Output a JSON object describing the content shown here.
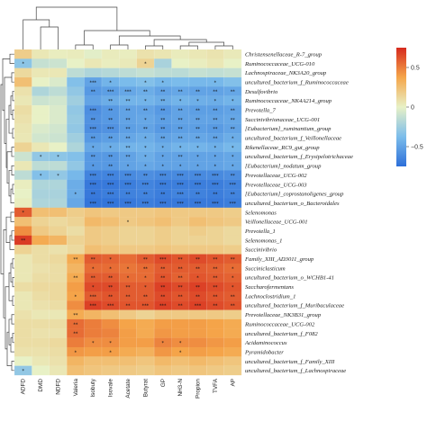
{
  "chart_data": {
    "type": "heatmap",
    "title": "",
    "xlabel": "",
    "ylabel": "",
    "color_scale": {
      "min": -0.75,
      "max": 0.75,
      "ticks": [
        0.5,
        0,
        -0.5
      ],
      "tick_labels": [
        "0.5",
        "0",
        "−0.5"
      ],
      "colors": [
        "#2d6fd9",
        "#7cbdeb",
        "#e8f1c6",
        "#f5a64a",
        "#d62a1e"
      ]
    },
    "columns": [
      "ADFD",
      "DMD",
      "NDFD",
      "Valeria",
      "Isobuty",
      "Isovale",
      "Acetate",
      "Butyrat",
      "GP",
      "NH3-N",
      "Propion",
      "TVFA",
      "AP"
    ],
    "rows": [
      {
        "name": "Christensenellaceae_R-7_group",
        "values": [
          0.18,
          0.05,
          0.02,
          0.03,
          -0.02,
          0.03,
          0.02,
          0.08,
          0.06,
          0.03,
          0.05,
          0.07,
          0.04
        ]
      },
      {
        "name": "Ruminococcaceae_UCG-010",
        "values": [
          -0.32,
          -0.12,
          -0.1,
          0.0,
          0.05,
          0.02,
          0.04,
          0.15,
          -0.22,
          0.0,
          0.02,
          0.05,
          0.0
        ],
        "stars": [
          "*",
          "",
          "",
          "",
          "",
          "",
          "",
          "*",
          "",
          "",
          "",
          "",
          ""
        ]
      },
      {
        "name": "Lachnospiraceae_NK3A20_group",
        "values": [
          0.12,
          0.05,
          0.05,
          -0.15,
          -0.2,
          -0.18,
          -0.15,
          -0.12,
          -0.15,
          -0.16,
          -0.12,
          -0.14,
          -0.12
        ]
      },
      {
        "name": "uncultured_bacterium_f_Ruminococcaceae",
        "values": [
          0.25,
          0.0,
          -0.05,
          -0.35,
          -0.5,
          -0.42,
          -0.38,
          -0.35,
          -0.4,
          -0.38,
          -0.4,
          -0.4,
          -0.35
        ],
        "stars": [
          "",
          "",
          "",
          "",
          "***",
          "*",
          "",
          "*",
          "*",
          "",
          "",
          "*",
          ""
        ]
      },
      {
        "name": "Desulfovibrio",
        "values": [
          0.08,
          -0.2,
          -0.15,
          -0.3,
          -0.55,
          -0.52,
          -0.48,
          -0.45,
          -0.5,
          -0.48,
          -0.5,
          -0.5,
          -0.48
        ],
        "stars": [
          "",
          "",
          "",
          "",
          "**",
          "***",
          "***",
          "**",
          "**",
          "**",
          "**",
          "**",
          "**"
        ]
      },
      {
        "name": "Ruminococcaceae_NK4A214_group",
        "values": [
          0.05,
          -0.1,
          -0.08,
          -0.25,
          -0.5,
          -0.45,
          -0.42,
          -0.42,
          -0.45,
          -0.42,
          -0.44,
          -0.45,
          -0.42
        ],
        "stars": [
          "",
          "",
          "",
          "",
          "",
          "**",
          "**",
          "*",
          "**",
          "*",
          "*",
          "*",
          "*"
        ]
      },
      {
        "name": "Prevotella_7",
        "values": [
          0.1,
          0.0,
          -0.05,
          -0.3,
          -0.6,
          -0.55,
          -0.5,
          -0.5,
          -0.55,
          -0.5,
          -0.52,
          -0.52,
          -0.5
        ],
        "stars": [
          "",
          "",
          "",
          "",
          "***",
          "**",
          "**",
          "**",
          "**",
          "**",
          "**",
          "**",
          "**"
        ]
      },
      {
        "name": "Succinivibrionaceae_UCG-001",
        "values": [
          0.08,
          0.0,
          -0.05,
          -0.28,
          -0.58,
          -0.55,
          -0.5,
          -0.48,
          -0.52,
          -0.5,
          -0.5,
          -0.5,
          -0.48
        ],
        "stars": [
          "",
          "",
          "",
          "",
          "**",
          "**",
          "**",
          "*",
          "**",
          "**",
          "**",
          "**",
          "**"
        ]
      },
      {
        "name": "[Eubacterium]_ruminantium_group",
        "values": [
          0.06,
          -0.05,
          -0.08,
          -0.3,
          -0.6,
          -0.58,
          -0.52,
          -0.5,
          -0.55,
          -0.52,
          -0.52,
          -0.54,
          -0.5
        ],
        "stars": [
          "",
          "",
          "",
          "",
          "***",
          "***",
          "**",
          "**",
          "**",
          "**",
          "**",
          "**",
          "**"
        ]
      },
      {
        "name": "uncultured_bacterium_f_Veillonellaceae",
        "values": [
          0.05,
          -0.08,
          -0.1,
          -0.25,
          -0.55,
          -0.52,
          -0.48,
          -0.45,
          -0.5,
          -0.48,
          -0.48,
          -0.5,
          -0.45
        ],
        "stars": [
          "",
          "",
          "",
          "",
          "**",
          "**",
          "**",
          "*",
          "**",
          "**",
          "**",
          "**",
          "*"
        ]
      },
      {
        "name": "Rikenellaceae_RC9_gut_group",
        "values": [
          0.15,
          0.05,
          0.0,
          -0.2,
          -0.48,
          -0.45,
          -0.42,
          -0.42,
          -0.45,
          -0.42,
          -0.42,
          -0.44,
          -0.4
        ],
        "stars": [
          "",
          "",
          "",
          "",
          "*",
          "*",
          "**",
          "*",
          "*",
          "*",
          "*",
          "*",
          "*"
        ]
      },
      {
        "name": "uncultured_bacterium_f_Erysipelotrichaceae",
        "values": [
          -0.1,
          -0.3,
          -0.32,
          -0.35,
          -0.55,
          -0.55,
          -0.5,
          -0.45,
          -0.5,
          -0.5,
          -0.5,
          -0.5,
          -0.48
        ],
        "stars": [
          "",
          "*",
          "*",
          "",
          "**",
          "**",
          "**",
          "*",
          "*",
          "**",
          "*",
          "*",
          "*"
        ]
      },
      {
        "name": "[Eubacterium]_nodatum_group",
        "values": [
          0.05,
          -0.15,
          -0.15,
          -0.3,
          -0.55,
          -0.55,
          -0.5,
          -0.48,
          -0.5,
          -0.5,
          -0.5,
          -0.5,
          -0.48
        ],
        "stars": [
          "",
          "",
          "",
          "",
          "*",
          "**",
          "*",
          "*",
          "*",
          "*",
          "*",
          "*",
          "*"
        ]
      },
      {
        "name": "Prevotellaceae_UCG-002",
        "values": [
          -0.15,
          -0.35,
          -0.3,
          -0.4,
          -0.65,
          -0.65,
          -0.62,
          -0.6,
          -0.62,
          -0.62,
          -0.62,
          -0.62,
          -0.6
        ],
        "stars": [
          "",
          "*",
          "*",
          "",
          "***",
          "***",
          "***",
          "**",
          "***",
          "***",
          "***",
          "***",
          "**"
        ]
      },
      {
        "name": "Prevotellaceae_UCG-003",
        "values": [
          0.02,
          -0.2,
          -0.2,
          -0.45,
          -0.7,
          -0.7,
          -0.68,
          -0.65,
          -0.68,
          -0.68,
          -0.68,
          -0.68,
          -0.65
        ],
        "stars": [
          "",
          "",
          "",
          "",
          "***",
          "***",
          "***",
          "***",
          "***",
          "***",
          "***",
          "***",
          "***"
        ]
      },
      {
        "name": "[Eubacterium]_coprostanoligenes_group",
        "values": [
          0.0,
          -0.22,
          -0.22,
          -0.45,
          -0.7,
          -0.68,
          -0.66,
          -0.65,
          -0.68,
          -0.65,
          -0.66,
          -0.68,
          -0.65
        ],
        "stars": [
          "",
          "",
          "",
          "*",
          "**",
          "***",
          "**",
          "**",
          "**",
          "***",
          "**",
          "**",
          "**"
        ]
      },
      {
        "name": "uncultured_bacterium_o_Bacteroidales",
        "values": [
          0.02,
          -0.2,
          -0.2,
          -0.48,
          -0.72,
          -0.72,
          -0.7,
          -0.68,
          -0.7,
          -0.7,
          -0.7,
          -0.7,
          -0.68
        ],
        "stars": [
          "",
          "",
          "",
          "",
          "***",
          "***",
          "***",
          "***",
          "***",
          "***",
          "***",
          "***",
          "***"
        ]
      },
      {
        "name": "Selenomonas",
        "values": [
          0.6,
          0.25,
          0.25,
          0.18,
          0.22,
          0.2,
          0.2,
          0.2,
          0.22,
          0.2,
          0.2,
          0.2,
          0.18
        ],
        "stars": [
          "*",
          "",
          "",
          "",
          "",
          "",
          "",
          "",
          "",
          "",
          "",
          "",
          ""
        ]
      },
      {
        "name": "Veillonellaceae_UCG-001",
        "values": [
          0.25,
          0.15,
          0.12,
          0.15,
          0.28,
          0.25,
          0.2,
          0.22,
          0.25,
          0.2,
          0.25,
          0.22,
          0.2
        ],
        "stars": [
          "",
          "",
          "",
          "",
          "",
          "",
          "*",
          "",
          "",
          "",
          "",
          "",
          ""
        ]
      },
      {
        "name": "Prevotella_1",
        "values": [
          0.45,
          0.2,
          0.15,
          0.1,
          0.2,
          0.18,
          0.15,
          0.15,
          0.18,
          0.15,
          0.18,
          0.15,
          0.12
        ]
      },
      {
        "name": "Selenomonas_1",
        "values": [
          0.7,
          0.35,
          0.3,
          0.15,
          0.2,
          0.18,
          0.15,
          0.15,
          0.18,
          0.15,
          0.15,
          0.15,
          0.12
        ],
        "stars": [
          "**",
          "",
          "",
          "",
          "",
          "",
          "",
          "",
          "",
          "",
          "",
          "",
          ""
        ]
      },
      {
        "name": "Succinivibrio",
        "values": [
          0.15,
          0.1,
          0.08,
          0.12,
          0.25,
          0.22,
          0.2,
          0.2,
          0.22,
          0.2,
          0.2,
          0.2,
          0.18
        ]
      },
      {
        "name": "Family_XIII_AD3011_group",
        "values": [
          0.05,
          0.1,
          0.12,
          0.35,
          0.6,
          0.58,
          0.55,
          0.6,
          0.65,
          0.62,
          0.65,
          0.62,
          0.6
        ],
        "stars": [
          "",
          "",
          "",
          "**",
          "**",
          "*",
          "",
          "**",
          "***",
          "**",
          "**",
          "**",
          "**"
        ]
      },
      {
        "name": "Succiniclasticum",
        "values": [
          0.05,
          0.08,
          0.1,
          0.3,
          0.55,
          0.55,
          0.52,
          0.55,
          0.6,
          0.6,
          0.6,
          0.58,
          0.55
        ],
        "stars": [
          "",
          "",
          "",
          "",
          "*",
          "*",
          "*",
          "**",
          "**",
          "**",
          "**",
          "**",
          "*"
        ]
      },
      {
        "name": "uncultured_bacterium_o_WCHB1-41",
        "values": [
          0.05,
          0.1,
          0.1,
          0.35,
          0.6,
          0.6,
          0.55,
          0.55,
          0.62,
          0.58,
          0.62,
          0.6,
          0.58
        ],
        "stars": [
          "",
          "",
          "",
          "**",
          "**",
          "**",
          "*",
          "*",
          "**",
          "**",
          "*",
          "**",
          "*"
        ]
      },
      {
        "name": "Saccharofermentans",
        "values": [
          0.1,
          0.12,
          0.12,
          0.4,
          0.65,
          0.65,
          0.6,
          0.6,
          0.68,
          0.65,
          0.68,
          0.65,
          0.62
        ],
        "stars": [
          "",
          "",
          "",
          "",
          "*",
          "**",
          "**",
          "*",
          "**",
          "**",
          "**",
          "**",
          "*"
        ]
      },
      {
        "name": "Lachnoclostridium_1",
        "values": [
          0.05,
          0.1,
          0.12,
          0.38,
          0.6,
          0.62,
          0.6,
          0.6,
          0.65,
          0.62,
          0.65,
          0.62,
          0.6
        ],
        "stars": [
          "",
          "",
          "",
          "*",
          "***",
          "**",
          "**",
          "**",
          "**",
          "**",
          "**",
          "**",
          "**"
        ]
      },
      {
        "name": "uncultured_bacterium_f_Muribaculaceae",
        "values": [
          0.05,
          0.08,
          0.1,
          0.45,
          0.68,
          0.65,
          0.62,
          0.62,
          0.68,
          0.65,
          0.68,
          0.65,
          0.62
        ],
        "stars": [
          "",
          "",
          "",
          "",
          "***",
          "***",
          "**",
          "***",
          "***",
          "**",
          "***",
          "**",
          "**"
        ]
      },
      {
        "name": "Prevotellaceae_NK3B31_group",
        "values": [
          0.08,
          0.05,
          0.05,
          0.35,
          0.3,
          0.25,
          0.2,
          0.15,
          0.2,
          0.2,
          0.2,
          0.2,
          0.18
        ],
        "stars": [
          "",
          "",
          "",
          "**",
          "",
          "",
          "",
          "",
          "",
          "",
          "",
          "",
          ""
        ]
      },
      {
        "name": "Ruminococcaceae_UCG-002",
        "values": [
          0.1,
          0.1,
          0.1,
          0.55,
          0.5,
          0.45,
          0.38,
          0.35,
          0.4,
          0.4,
          0.4,
          0.38,
          0.35
        ],
        "stars": [
          "",
          "",
          "",
          "**",
          "",
          "",
          "",
          "",
          "",
          "",
          "",
          "",
          ""
        ]
      },
      {
        "name": "uncultured_bacterium_f_F082",
        "values": [
          0.1,
          0.08,
          0.08,
          0.55,
          0.5,
          0.48,
          0.4,
          0.35,
          0.42,
          0.4,
          0.4,
          0.38,
          0.35
        ],
        "stars": [
          "",
          "",
          "",
          "**",
          "",
          "",
          "",
          "",
          "",
          "",
          "",
          "",
          ""
        ]
      },
      {
        "name": "Acidaminococcus",
        "values": [
          0.1,
          0.1,
          0.12,
          0.5,
          0.45,
          0.45,
          0.4,
          0.4,
          0.48,
          0.45,
          0.45,
          0.42,
          0.4
        ],
        "stars": [
          "",
          "",
          "",
          "",
          "*",
          "*",
          "",
          "",
          "*",
          "*",
          "",
          "",
          ""
        ]
      },
      {
        "name": "Pyramidobacter",
        "values": [
          0.08,
          0.08,
          0.1,
          0.42,
          0.4,
          0.4,
          0.35,
          0.32,
          0.42,
          0.38,
          0.4,
          0.38,
          0.35
        ],
        "stars": [
          "",
          "",
          "",
          "*",
          "",
          "*",
          "",
          "",
          "",
          "*",
          "",
          "",
          ""
        ]
      },
      {
        "name": "uncultured_bacterium_f_Family_XIII",
        "values": [
          0.0,
          0.05,
          0.08,
          0.3,
          0.25,
          0.25,
          0.25,
          0.22,
          0.28,
          0.25,
          0.28,
          0.25,
          0.22
        ]
      },
      {
        "name": "uncultured_bacterium_f_Lachnospiraceae",
        "values": [
          -0.3,
          0.0,
          0.05,
          0.25,
          0.22,
          0.2,
          0.2,
          0.18,
          0.22,
          0.2,
          0.22,
          0.2,
          0.18
        ],
        "stars": [
          "*",
          "",
          "",
          "",
          "",
          "",
          "",
          "",
          "",
          "",
          "",
          "",
          ""
        ]
      }
    ]
  }
}
